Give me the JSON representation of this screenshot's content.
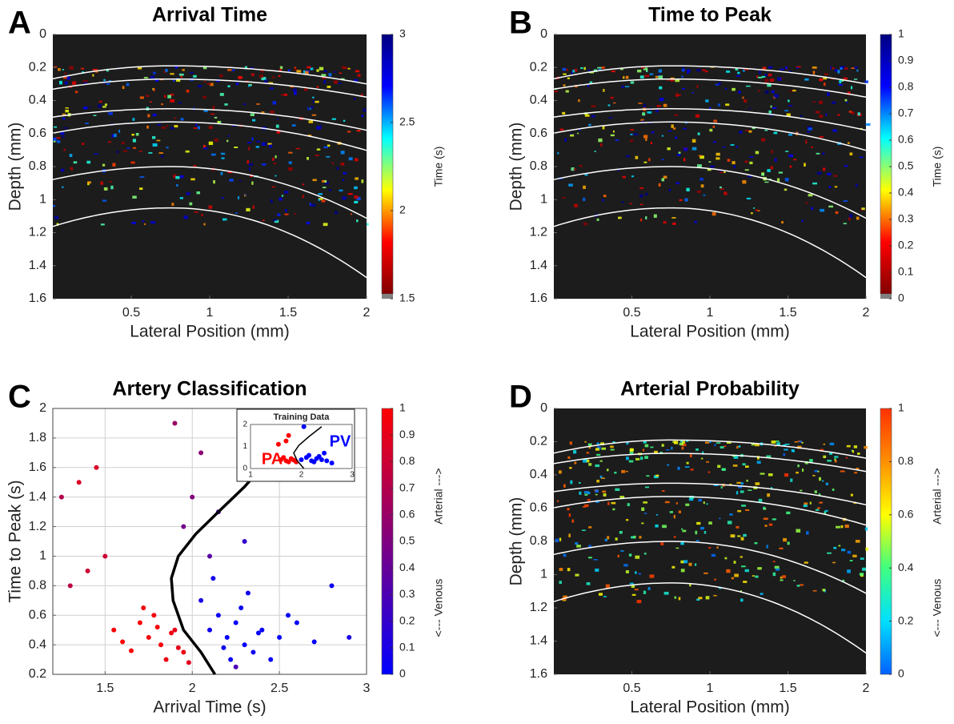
{
  "chart_data": [
    {
      "type": "heatmap",
      "panel": "A",
      "title": "Arrival Time",
      "xlabel": "Lateral Position (mm)",
      "ylabel": "Depth (mm)",
      "xlim": [
        0,
        2
      ],
      "xticks": [
        0.5,
        1,
        1.5,
        2
      ],
      "ylim": [
        0,
        1.6
      ],
      "yticks": [
        0,
        0.2,
        0.4,
        0.6,
        0.8,
        1,
        1.2,
        1.4,
        1.6
      ],
      "y_reversed": true,
      "colorbar": {
        "label": "Time (s)",
        "lim": [
          1.5,
          3
        ],
        "ticks": [
          1.5,
          2,
          2.5,
          3
        ],
        "colormap": [
          "#800000",
          "#ff0000",
          "#ffff00",
          "#00ffff",
          "#0000ff",
          "#000080"
        ],
        "underflow_color": "#808080"
      }
    },
    {
      "type": "heatmap",
      "panel": "B",
      "title": "Time to Peak",
      "xlabel": "Lateral Position (mm)",
      "ylabel": "Depth (mm)",
      "xlim": [
        0,
        2
      ],
      "xticks": [
        0.5,
        1,
        1.5,
        2
      ],
      "ylim": [
        0,
        1.6
      ],
      "yticks": [
        0,
        0.2,
        0.4,
        0.6,
        0.8,
        1,
        1.2,
        1.4,
        1.6
      ],
      "y_reversed": true,
      "colorbar": {
        "label": "Time (s)",
        "lim": [
          0,
          1
        ],
        "ticks": [
          0,
          0.1,
          0.2,
          0.3,
          0.4,
          0.5,
          0.6,
          0.7,
          0.8,
          0.9,
          1
        ],
        "colormap": [
          "#800000",
          "#ff0000",
          "#ffff00",
          "#00ffff",
          "#0000ff",
          "#000080"
        ],
        "underflow_color": "#808080"
      }
    },
    {
      "type": "scatter",
      "panel": "C",
      "title": "Artery Classification",
      "xlabel": "Arrival Time (s)",
      "ylabel": "Time to Peak (s)",
      "xlim": [
        1.2,
        3
      ],
      "xticks": [
        1.5,
        2,
        2.5,
        3
      ],
      "ylim": [
        0.2,
        2
      ],
      "yticks": [
        0.2,
        0.4,
        0.6,
        0.8,
        1,
        1.2,
        1.4,
        1.6,
        1.8,
        2
      ],
      "grid": true,
      "x": [
        1.75,
        1.82,
        1.9,
        1.95,
        1.7,
        1.85,
        1.6,
        1.78,
        1.92,
        1.88,
        1.65,
        1.55,
        1.98,
        1.8,
        1.72,
        2.1,
        2.2,
        2.25,
        2.3,
        2.15,
        2.4,
        2.35,
        2.5,
        2.05,
        2.28,
        2.45,
        2.6,
        2.18,
        2.32,
        2.55,
        2.7,
        2.22,
        2.12,
        2.38,
        1.95,
        2.0,
        2.1,
        2.05,
        1.9,
        2.15,
        2.3,
        1.45,
        1.5,
        1.3,
        1.25,
        1.35,
        1.4,
        2.8,
        2.9,
        2.25
      ],
      "y": [
        0.45,
        0.4,
        0.5,
        0.35,
        0.55,
        0.3,
        0.42,
        0.6,
        0.38,
        0.48,
        0.36,
        0.5,
        0.28,
        0.52,
        0.65,
        0.5,
        0.45,
        0.55,
        0.4,
        0.6,
        0.5,
        0.35,
        0.45,
        0.7,
        0.65,
        0.3,
        0.55,
        0.38,
        0.75,
        0.6,
        0.42,
        0.3,
        0.85,
        0.48,
        1.2,
        1.4,
        1.0,
        1.7,
        1.9,
        1.3,
        1.1,
        1.6,
        1.0,
        0.8,
        1.4,
        1.5,
        0.9,
        0.8,
        0.45,
        0.25
      ],
      "probability": [
        0.95,
        0.97,
        0.9,
        0.92,
        0.98,
        0.93,
        0.99,
        0.95,
        0.9,
        0.94,
        0.98,
        0.99,
        0.88,
        0.96,
        0.95,
        0.05,
        0.03,
        0.04,
        0.02,
        0.06,
        0.03,
        0.05,
        0.02,
        0.1,
        0.04,
        0.03,
        0.02,
        0.05,
        0.06,
        0.03,
        0.02,
        0.04,
        0.08,
        0.03,
        0.45,
        0.5,
        0.35,
        0.55,
        0.6,
        0.3,
        0.2,
        0.85,
        0.8,
        0.75,
        0.7,
        0.85,
        0.8,
        0.05,
        0.1,
        0.3
      ],
      "boundary": {
        "x": [
          2.13,
          2.05,
          1.95,
          1.89,
          1.88,
          1.92,
          2.02,
          2.15,
          2.3,
          2.36
        ],
        "y": [
          0.2,
          0.35,
          0.5,
          0.7,
          0.85,
          1.0,
          1.15,
          1.3,
          1.47,
          1.55
        ]
      },
      "inset": {
        "title": "Training Data",
        "xlim": [
          1,
          3
        ],
        "xticks": [
          1,
          2,
          3
        ],
        "ylim": [
          0,
          2
        ],
        "yticks": [
          0,
          1,
          2
        ],
        "pa": {
          "label": "PA",
          "color": "#ff0000",
          "x": [
            1.6,
            1.7,
            1.8,
            1.75,
            1.85,
            1.65,
            1.9,
            1.55,
            1.7,
            1.75
          ],
          "y": [
            0.4,
            0.35,
            0.45,
            0.3,
            0.38,
            0.5,
            0.3,
            1.1,
            1.25,
            1.5
          ]
        },
        "pv": {
          "label": "PV",
          "color": "#0000ff",
          "x": [
            2.0,
            2.1,
            2.2,
            2.3,
            2.4,
            2.5,
            2.15,
            2.25,
            2.35,
            2.6,
            2.05,
            2.45
          ],
          "y": [
            0.4,
            0.5,
            0.35,
            0.45,
            0.4,
            0.35,
            0.6,
            0.3,
            0.55,
            0.25,
            1.9,
            0.7
          ]
        },
        "boundary": {
          "x": [
            2.05,
            1.92,
            1.85,
            1.95,
            2.15,
            2.4
          ],
          "y": [
            0,
            0.35,
            0.7,
            1.05,
            1.45,
            1.9
          ]
        }
      },
      "colorbar": {
        "label_top": "Arterial --->",
        "label_bottom": "<--- Venous",
        "lim": [
          0,
          1
        ],
        "ticks": [
          0,
          0.1,
          0.2,
          0.3,
          0.4,
          0.5,
          0.6,
          0.7,
          0.8,
          0.9,
          1
        ],
        "colormap": [
          "#0000ff",
          "#ff0000"
        ]
      }
    },
    {
      "type": "heatmap",
      "panel": "D",
      "title": "Arterial Probability",
      "xlabel": "Lateral Position (mm)",
      "ylabel": "Depth (mm)",
      "xlim": [
        0,
        2
      ],
      "xticks": [
        0.5,
        1,
        1.5,
        2
      ],
      "ylim": [
        0,
        1.6
      ],
      "yticks": [
        0,
        0.2,
        0.4,
        0.6,
        0.8,
        1,
        1.2,
        1.4,
        1.6
      ],
      "y_reversed": true,
      "colorbar": {
        "label_top": "Arterial --->",
        "label_bottom": "<--- Venous",
        "lim": [
          0,
          1
        ],
        "ticks": [
          0,
          0.2,
          0.4,
          0.6,
          0.8,
          1
        ],
        "colormap": [
          "#0060ff",
          "#00e0ff",
          "#40ff80",
          "#ffff00",
          "#ff9000",
          "#ff3000"
        ]
      }
    }
  ]
}
